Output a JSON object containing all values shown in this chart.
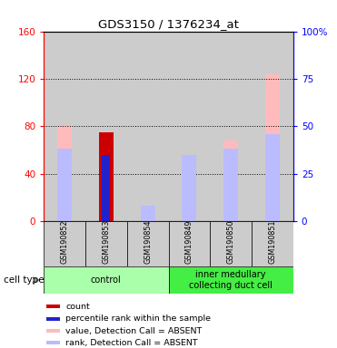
{
  "title": "GDS3150 / 1376234_at",
  "samples": [
    "GSM190852",
    "GSM190853",
    "GSM190854",
    "GSM190849",
    "GSM190850",
    "GSM190851"
  ],
  "groups": [
    {
      "name": "control",
      "indices": [
        0,
        1,
        2
      ],
      "color": "#aaffaa"
    },
    {
      "name": "inner medullary\ncollecting duct cell",
      "indices": [
        3,
        4,
        5
      ],
      "color": "#44ee44"
    }
  ],
  "ylim_left": [
    0,
    160
  ],
  "ylim_right": [
    0,
    100
  ],
  "yticks_left": [
    0,
    40,
    80,
    120,
    160
  ],
  "yticks_right": [
    0,
    25,
    50,
    75,
    100
  ],
  "ytick_labels_left": [
    "0",
    "40",
    "80",
    "120",
    "160"
  ],
  "ytick_labels_right": [
    "0",
    "25",
    "50",
    "75",
    "100%"
  ],
  "value_absent": [
    80,
    75,
    10,
    47,
    68,
    124
  ],
  "rank_absent_pct": [
    38,
    5,
    8,
    35,
    38,
    46
  ],
  "count": [
    0,
    75,
    0,
    0,
    0,
    0
  ],
  "percentile_pct": [
    0,
    35,
    0,
    0,
    0,
    0
  ],
  "colors": {
    "count": "#cc0000",
    "percentile": "#2222cc",
    "value_absent": "#ffbbbb",
    "rank_absent": "#bbbbff",
    "col_bg": "#cccccc"
  },
  "bar_width": 0.35,
  "legend_items": [
    {
      "label": "count",
      "color": "#cc0000"
    },
    {
      "label": "percentile rank within the sample",
      "color": "#2222cc"
    },
    {
      "label": "value, Detection Call = ABSENT",
      "color": "#ffbbbb"
    },
    {
      "label": "rank, Detection Call = ABSENT",
      "color": "#bbbbff"
    }
  ]
}
